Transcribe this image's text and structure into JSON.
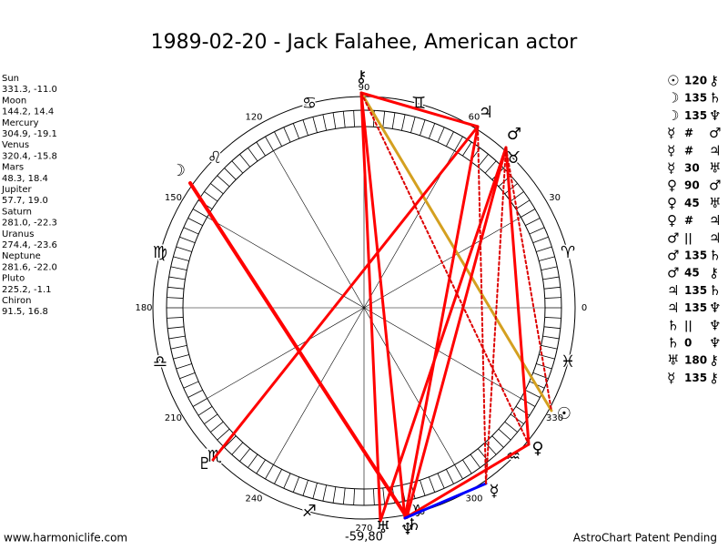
{
  "title": "1989-02-20 - Jack Falahee, American actor",
  "planets": [
    {
      "name": "Sun",
      "glyph": "☉",
      "coords": "331.3, -11.0"
    },
    {
      "name": "Moon",
      "glyph": "☽",
      "coords": "144.2, 14.4"
    },
    {
      "name": "Mercury",
      "glyph": "☿",
      "coords": "304.9, -19.1"
    },
    {
      "name": "Venus",
      "glyph": "♀",
      "coords": "320.4, -15.8"
    },
    {
      "name": "Mars",
      "glyph": "♂",
      "coords": "48.3, 18.4"
    },
    {
      "name": "Jupiter",
      "glyph": "♃",
      "coords": "57.7, 19.0"
    },
    {
      "name": "Saturn",
      "glyph": "♄",
      "coords": "281.0, -22.3"
    },
    {
      "name": "Uranus",
      "glyph": "♅",
      "coords": "274.4, -23.6"
    },
    {
      "name": "Neptune",
      "glyph": "♆",
      "coords": "281.6, -22.0"
    },
    {
      "name": "Pluto",
      "glyph": "♇",
      "coords": "225.2, -1.1"
    },
    {
      "name": "Chiron",
      "glyph": "⚷",
      "coords": "91.5, 16.8"
    }
  ],
  "aspects": [
    [
      "☉",
      "120",
      "⚷"
    ],
    [
      "☽",
      "135",
      "♄"
    ],
    [
      "☽",
      "135",
      "♆"
    ],
    [
      "☿",
      "#",
      "♂"
    ],
    [
      "☿",
      "#",
      "♃"
    ],
    [
      "☿",
      "30",
      "♅"
    ],
    [
      "♀",
      "90",
      "♂"
    ],
    [
      "♀",
      "45",
      "♅"
    ],
    [
      "♀",
      "#",
      "♃"
    ],
    [
      "♂",
      "||",
      "♃"
    ],
    [
      "♂",
      "135",
      "♄"
    ],
    [
      "♂",
      "45",
      "⚷"
    ],
    [
      "♃",
      "135",
      "♄"
    ],
    [
      "♃",
      "135",
      "♆"
    ],
    [
      "♄",
      "||",
      "♆"
    ],
    [
      "♄",
      "0",
      "♆"
    ],
    [
      "♅",
      "180",
      "⚷"
    ],
    [
      "☿",
      "135",
      "⚷"
    ]
  ],
  "degree_labels": [
    "0",
    "30",
    "60",
    "90",
    "120",
    "150",
    "180",
    "210",
    "240",
    "270",
    "300",
    "330"
  ],
  "zodiac": [
    "♈",
    "♉",
    "♊",
    "♋",
    "♌",
    "♍",
    "♎",
    "♏",
    "♐",
    "♑",
    "♒",
    "♓"
  ],
  "bottom_label": "-59,80",
  "footer": {
    "left": "www.harmoniclife.com",
    "right": "AstroChart Patent Pending"
  }
}
